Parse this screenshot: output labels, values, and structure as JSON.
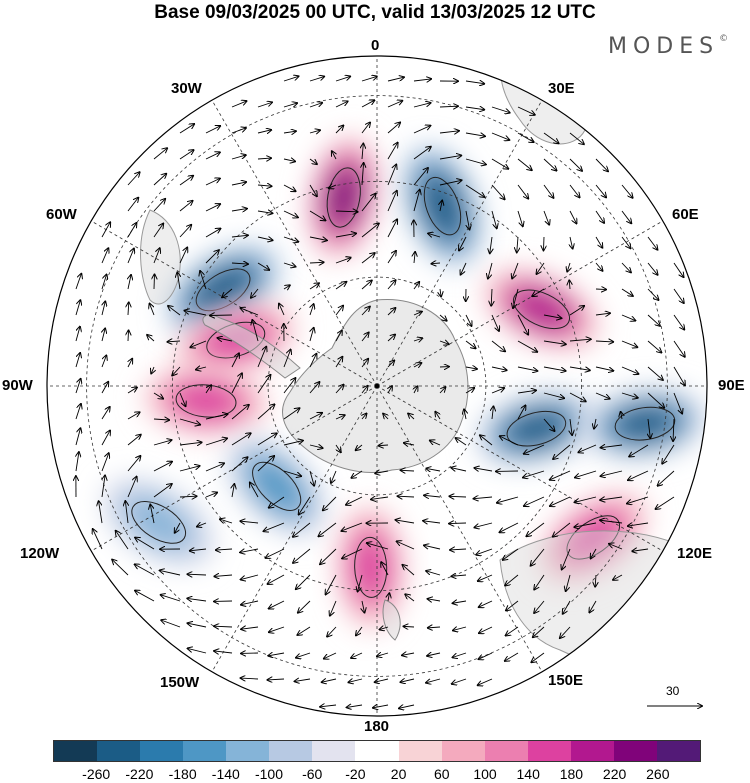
{
  "title": "Base 09/03/2025 00 UTC, valid 13/03/2025 12 UTC",
  "brand": "MODES",
  "brand_mark": "©",
  "longitude_labels": {
    "top": "0",
    "e30": "30E",
    "e60": "60E",
    "e90": "90E",
    "e120": "120E",
    "e150": "150E",
    "bottom": "180",
    "w150": "150W",
    "w120": "120W",
    "w90": "90W",
    "w60": "60W",
    "w30": "30W"
  },
  "reference_vector": {
    "value": "30"
  },
  "colorbar": {
    "ticks": [
      "-260",
      "-220",
      "-180",
      "-140",
      "-100",
      "-60",
      "-20",
      "20",
      "60",
      "100",
      "140",
      "180",
      "220",
      "260"
    ],
    "colors": [
      "#133a55",
      "#1b5c86",
      "#2b7bad",
      "#4e97c5",
      "#85b4d8",
      "#b7c9e3",
      "#e3e3ef",
      "#ffffff",
      "#f8d3d6",
      "#f4aabe",
      "#ec7fb0",
      "#dd41a0",
      "#b2188f",
      "#80037a",
      "#531a77"
    ]
  },
  "map": {
    "projection": "south-polar-stereographic",
    "anomalies": [
      {
        "lon": -58,
        "dist": 0.55,
        "value": -240
      },
      {
        "lon": -10,
        "dist": 0.58,
        "value": 230
      },
      {
        "lon": 20,
        "dist": 0.58,
        "value": -250
      },
      {
        "lon": 65,
        "dist": 0.55,
        "value": 200
      },
      {
        "lon": 105,
        "dist": 0.5,
        "value": -220
      },
      {
        "lon": 98,
        "dist": 0.82,
        "value": -230
      },
      {
        "lon": 125,
        "dist": 0.8,
        "value": 150
      },
      {
        "lon": -72,
        "dist": 0.45,
        "value": 170
      },
      {
        "lon": -95,
        "dist": 0.52,
        "value": 150
      },
      {
        "lon": -135,
        "dist": 0.43,
        "value": -150
      },
      {
        "lon": -178,
        "dist": 0.55,
        "value": 150
      },
      {
        "lon": -122,
        "dist": 0.78,
        "value": -130
      }
    ]
  }
}
